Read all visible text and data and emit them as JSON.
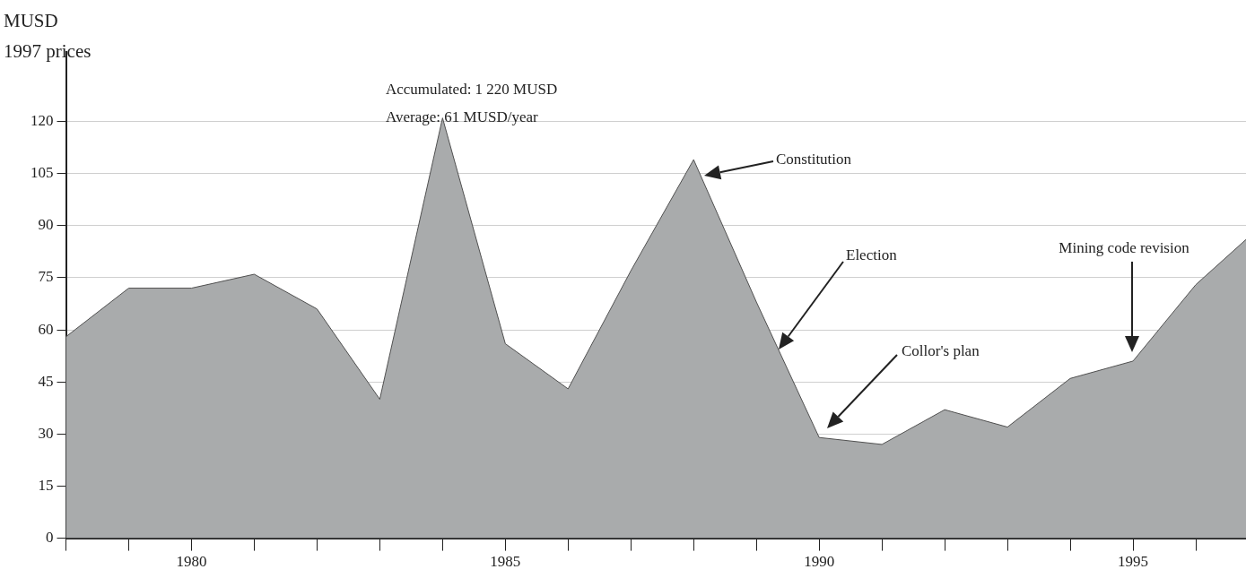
{
  "chart_data": {
    "type": "area",
    "ylabel": "MUSD\n1997 prices",
    "x": [
      1978,
      1979,
      1980,
      1981,
      1982,
      1983,
      1984,
      1985,
      1986,
      1987,
      1988,
      1989,
      1990,
      1991,
      1992,
      1993,
      1994,
      1995,
      1996,
      1996.8
    ],
    "series": [
      {
        "color": "#a9abac",
        "values": [
          58,
          72,
          72,
          76,
          66,
          40,
          121,
          56,
          43,
          77,
          109,
          68,
          29,
          27,
          37,
          32,
          46,
          51,
          73,
          86
        ]
      }
    ],
    "xlim": [
      1978,
      1996.8
    ],
    "xticks": [
      {
        "value": 1978,
        "label": null
      },
      {
        "value": 1979,
        "label": null
      },
      1980,
      {
        "value": 1981,
        "label": null
      },
      {
        "value": 1982,
        "label": null
      },
      {
        "value": 1983,
        "label": null
      },
      {
        "value": 1984,
        "label": null
      },
      1985,
      {
        "value": 1986,
        "label": null
      },
      {
        "value": 1987,
        "label": null
      },
      {
        "value": 1988,
        "label": null
      },
      {
        "value": 1989,
        "label": null
      },
      1990,
      {
        "value": 1991,
        "label": null
      },
      {
        "value": 1992,
        "label": null
      },
      {
        "value": 1993,
        "label": null
      },
      {
        "value": 1994,
        "label": null
      },
      1995,
      {
        "value": 1996,
        "label": null
      }
    ],
    "ylim": [
      0,
      140
    ],
    "yticks": [
      0,
      15,
      30,
      45,
      60,
      75,
      90,
      105,
      120
    ],
    "grid": "y",
    "marker": "none",
    "legend": false,
    "annotations": [
      "Accumulated: 1 220 MUSD",
      "Average: 61 MUSD/year",
      "Constitution",
      "Election",
      "Collor's plan",
      "Mining code revision"
    ]
  }
}
